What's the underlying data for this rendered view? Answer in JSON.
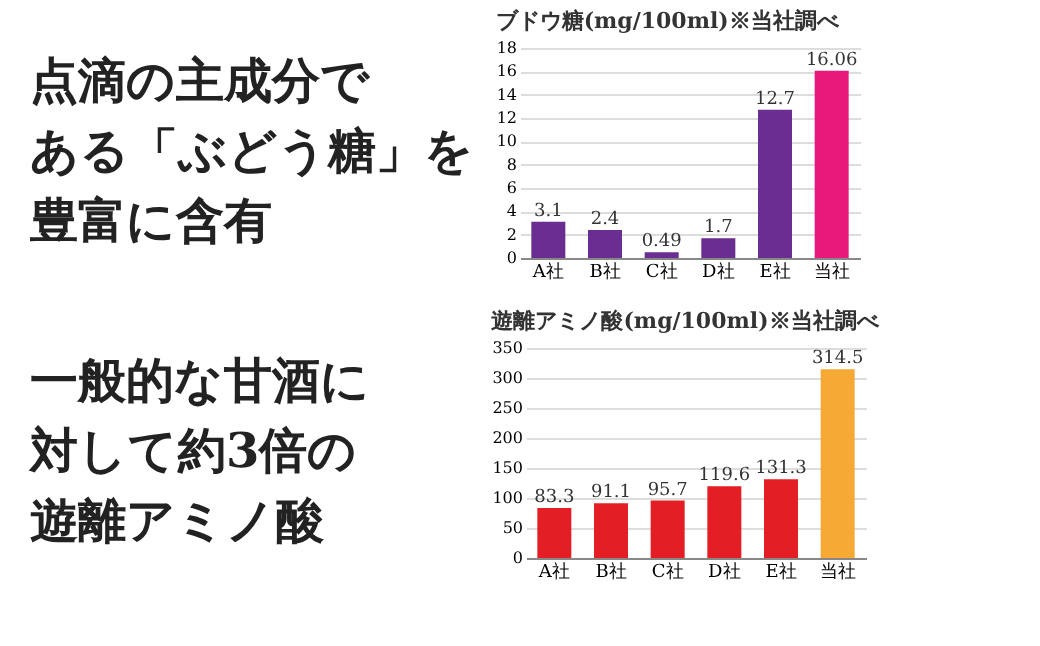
{
  "chart_data": [
    {
      "type": "bar",
      "title": "ブドウ糖(mg/100ml)※当社調べ",
      "categories": [
        "A社",
        "B社",
        "C社",
        "D社",
        "E社",
        "当社"
      ],
      "values": [
        3.1,
        2.4,
        0.49,
        1.7,
        12.7,
        16.06
      ],
      "colors": [
        "#6a2d91",
        "#6a2d91",
        "#6a2d91",
        "#6a2d91",
        "#6a2d91",
        "#e8197a"
      ],
      "ylim": [
        0,
        18
      ],
      "yticks": [
        0,
        2,
        4,
        6,
        8,
        10,
        12,
        14,
        16,
        18
      ],
      "grid": "y",
      "data_labels": true,
      "annotations": [
        "点滴の主成分で",
        "ある「ぶどう糖」を",
        "豊富に含有"
      ]
    },
    {
      "type": "bar",
      "title": "遊離アミノ酸(mg/100ml)※当社調べ",
      "categories": [
        "A社",
        "B社",
        "C社",
        "D社",
        "E社",
        "当社"
      ],
      "values": [
        83.3,
        91.1,
        95.7,
        119.6,
        131.3,
        314.5
      ],
      "colors": [
        "#e31e24",
        "#e31e24",
        "#e31e24",
        "#e31e24",
        "#e31e24",
        "#f6a935"
      ],
      "ylim": [
        0,
        350
      ],
      "yticks": [
        0,
        50,
        100,
        150,
        200,
        250,
        300,
        350
      ],
      "grid": "y",
      "data_labels": true,
      "annotations": [
        "一般的な甘酒に",
        "対して約3倍の",
        "遊離アミノ酸"
      ]
    }
  ]
}
